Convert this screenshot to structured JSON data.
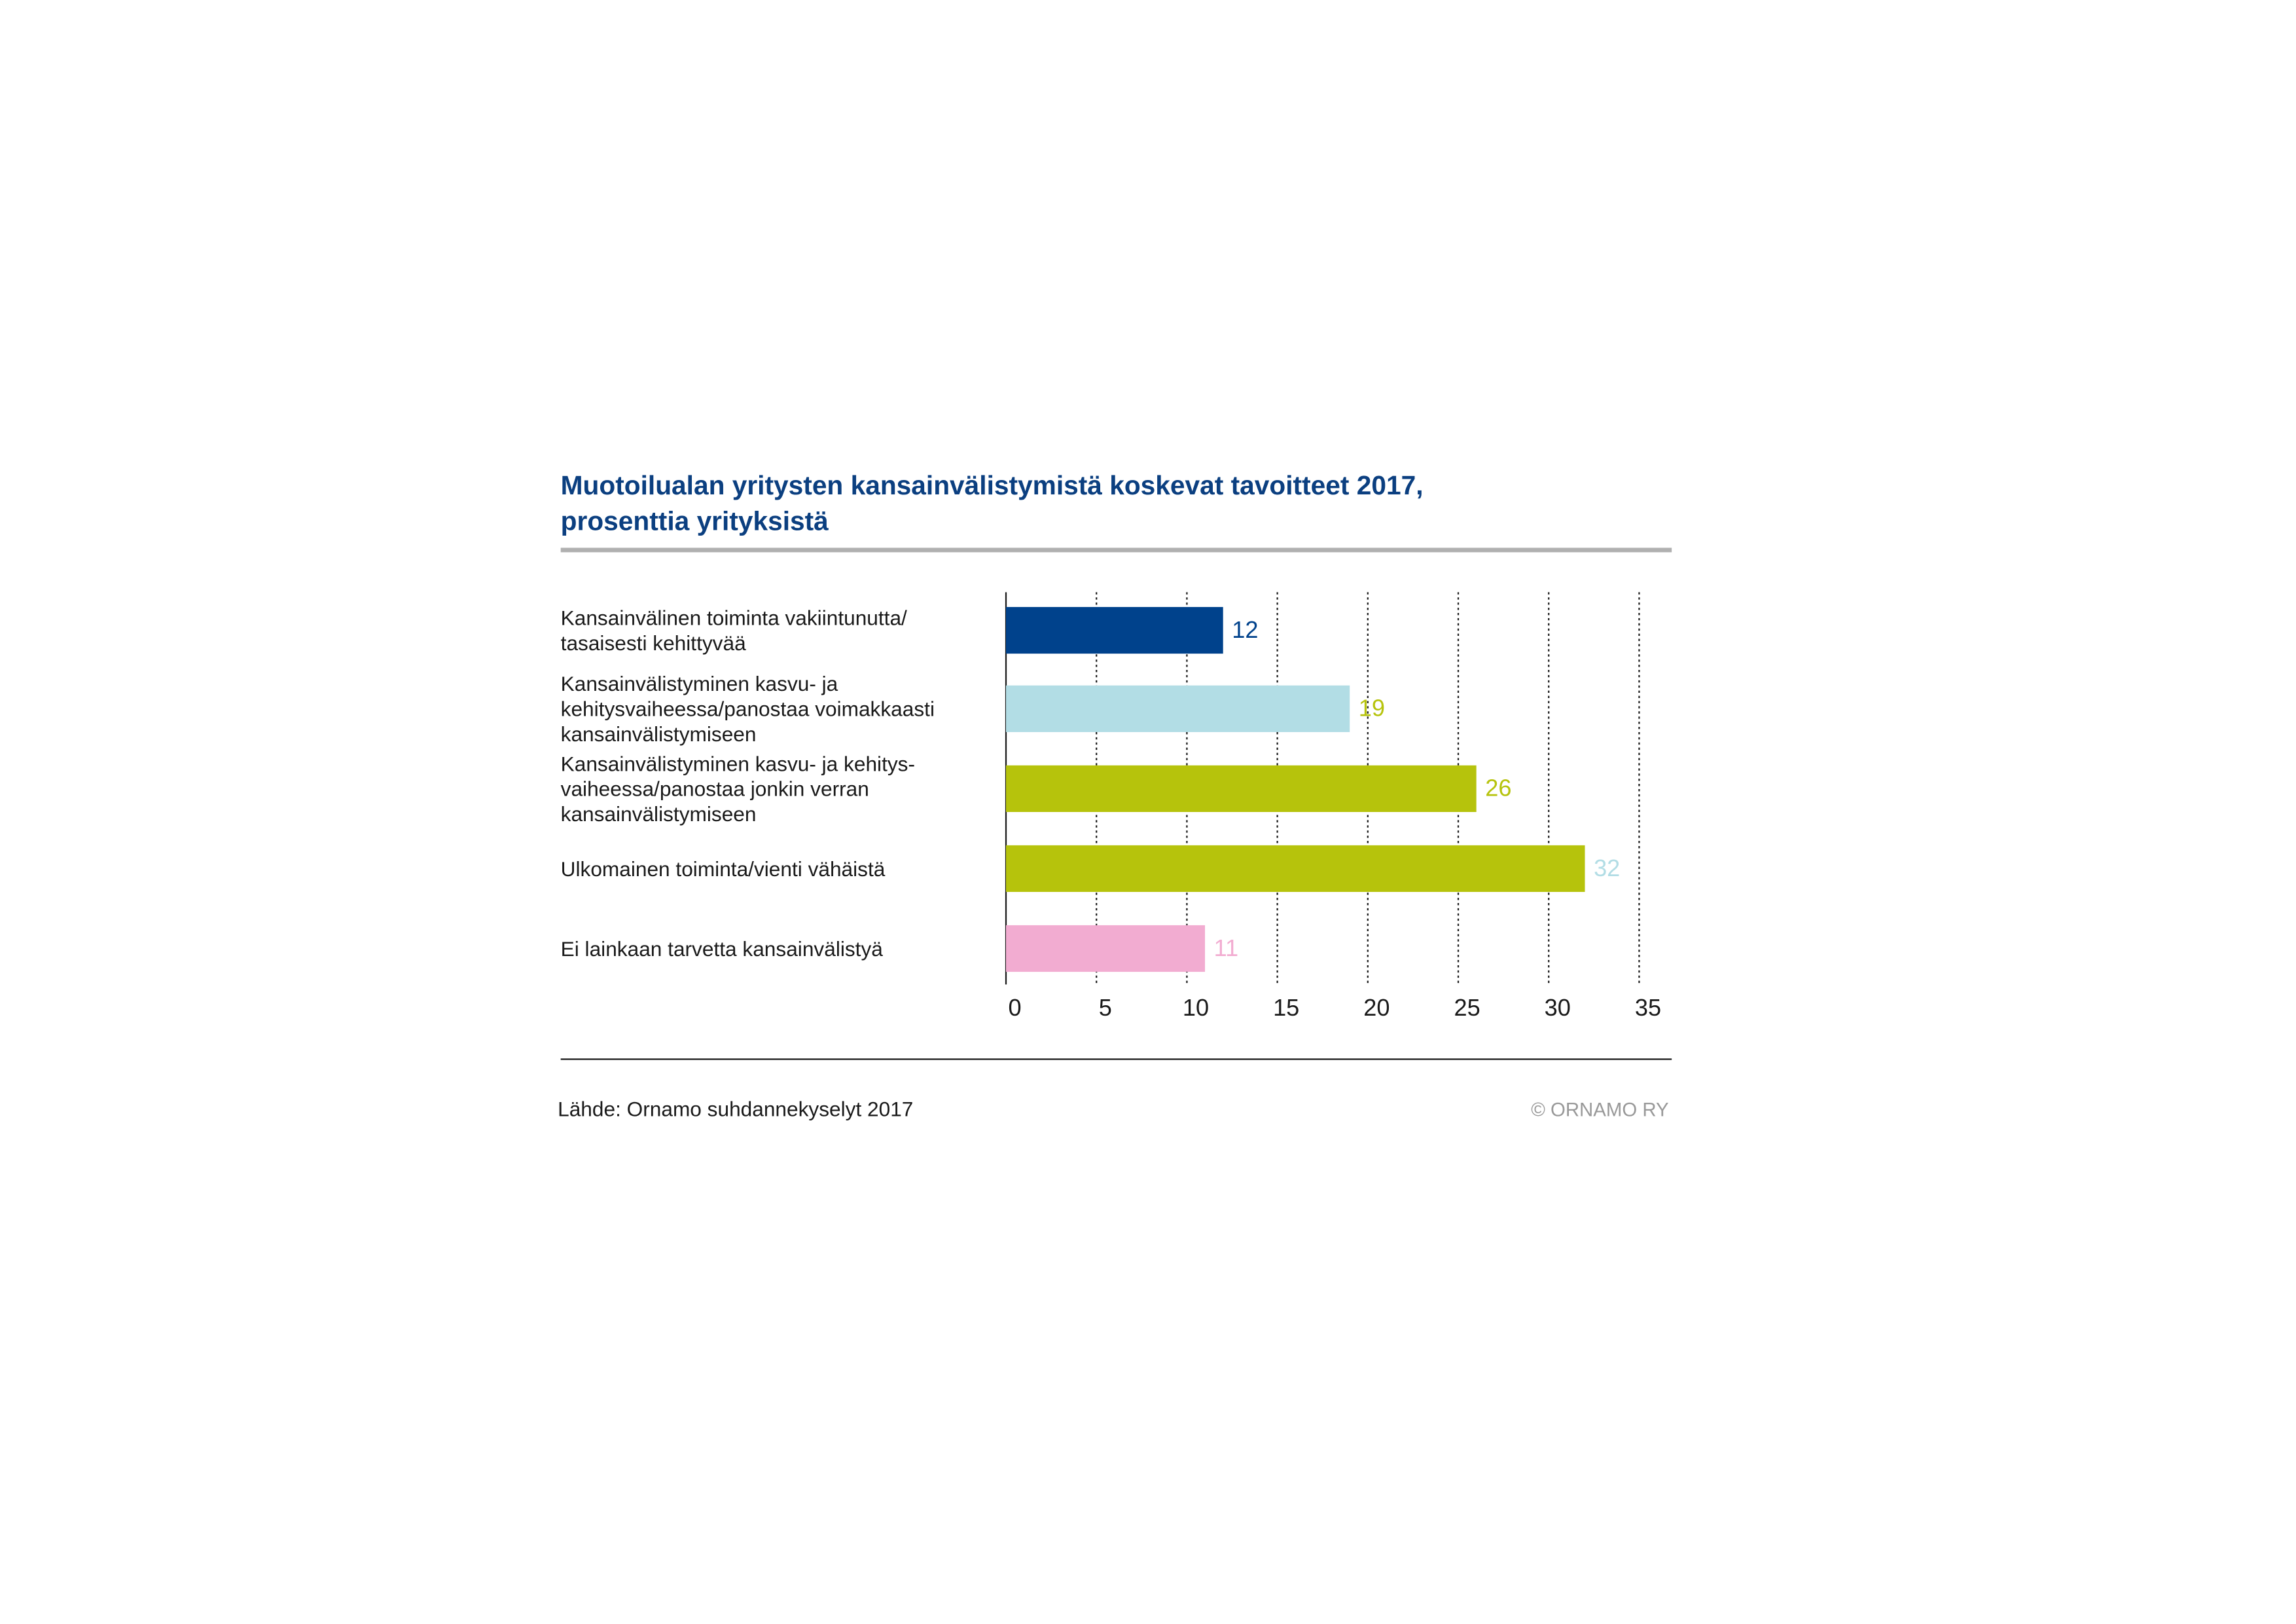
{
  "chart_data": {
    "type": "hbar",
    "title": "Muotoilualan yritysten kansainvälistymistä koskevat tavoitteet 2017,\nprosenttia yrityksistä",
    "categories": [
      "Kansainvälinen toiminta vakiintunutta/\ntasaisesti kehittyvää",
      "Kansainvälistyminen kasvu- ja\nkehitysvaiheessa/panostaa voimakkaasti\nkansainvälistymiseen",
      "Kansainvälistyminen kasvu- ja kehitys-\nvaiheessa/panostaa jonkin verran\nkansainvälistymiseen",
      "Ulkomainen toiminta/vienti vähäistä",
      "Ei lainkaan tarvetta kansainvälistyä"
    ],
    "values": [
      12,
      19,
      26,
      32,
      11
    ],
    "colors": [
      "#00428c",
      "#b2dde5",
      "#b6c30c",
      "#b6c30c",
      "#f2acd1"
    ],
    "label_colors": [
      "#00428c",
      "#b6c30c",
      "#b6c30c",
      "#b2dde5",
      "#f2acd1"
    ],
    "xlim": [
      0,
      35
    ],
    "xticks": [
      0,
      5,
      10,
      15,
      20,
      25,
      30,
      35
    ],
    "grid": true,
    "source": "Lähde: Ornamo suhdannekyselyt 2017",
    "copyright": "© ORNAMO RY"
  }
}
